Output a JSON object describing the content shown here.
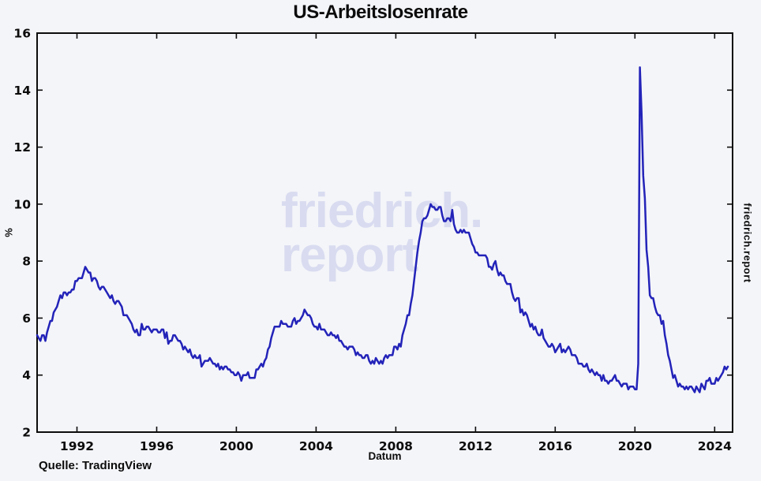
{
  "colors": {
    "background": "#f4f5f9",
    "line": "#2323b9",
    "watermark": "#d9dcf0",
    "axis": "#0c0c0c",
    "text": "#0c0c0c"
  },
  "branding": {
    "watermark_line1": "friedrich.",
    "watermark_line2": "report",
    "side_label": "friedrich.report"
  },
  "source": {
    "label": "Quelle: TradingView"
  },
  "chart_data": {
    "type": "line",
    "title": "US-Arbeitslosenrate",
    "xlabel": "Datum",
    "ylabel": "%",
    "xlim": [
      1990,
      2024.9
    ],
    "ylim": [
      2,
      16
    ],
    "x_ticks": [
      1992,
      1996,
      2000,
      2004,
      2008,
      2012,
      2016,
      2020,
      2024
    ],
    "y_ticks": [
      2,
      4,
      6,
      8,
      10,
      12,
      14,
      16
    ],
    "grid": false,
    "legend": "none",
    "series": [
      {
        "name": "US-Arbeitslosenrate",
        "x_start_year": 1990,
        "x_step": "monthly",
        "values": [
          5.4,
          5.3,
          5.2,
          5.4,
          5.4,
          5.2,
          5.5,
          5.7,
          5.9,
          5.9,
          6.2,
          6.3,
          6.4,
          6.6,
          6.8,
          6.7,
          6.9,
          6.9,
          6.8,
          6.9,
          6.9,
          7.0,
          7.0,
          7.3,
          7.3,
          7.4,
          7.4,
          7.4,
          7.6,
          7.8,
          7.7,
          7.6,
          7.6,
          7.3,
          7.4,
          7.4,
          7.3,
          7.1,
          7.0,
          7.1,
          7.1,
          7.0,
          6.9,
          6.8,
          6.7,
          6.8,
          6.6,
          6.5,
          6.6,
          6.6,
          6.5,
          6.4,
          6.1,
          6.1,
          6.1,
          6.0,
          5.9,
          5.8,
          5.6,
          5.5,
          5.6,
          5.4,
          5.4,
          5.8,
          5.6,
          5.6,
          5.7,
          5.7,
          5.6,
          5.5,
          5.6,
          5.6,
          5.6,
          5.5,
          5.5,
          5.6,
          5.6,
          5.3,
          5.5,
          5.1,
          5.2,
          5.2,
          5.4,
          5.4,
          5.3,
          5.2,
          5.2,
          5.1,
          4.9,
          5.0,
          4.9,
          4.8,
          4.9,
          4.7,
          4.6,
          4.7,
          4.6,
          4.6,
          4.7,
          4.3,
          4.4,
          4.5,
          4.5,
          4.5,
          4.6,
          4.5,
          4.4,
          4.4,
          4.3,
          4.4,
          4.2,
          4.3,
          4.2,
          4.3,
          4.3,
          4.2,
          4.2,
          4.1,
          4.1,
          4.0,
          4.0,
          4.1,
          4.0,
          3.8,
          4.0,
          4.0,
          4.0,
          4.1,
          3.9,
          3.9,
          3.9,
          3.9,
          4.2,
          4.2,
          4.3,
          4.4,
          4.3,
          4.5,
          4.6,
          4.9,
          5.0,
          5.3,
          5.5,
          5.7,
          5.7,
          5.7,
          5.7,
          5.9,
          5.8,
          5.8,
          5.8,
          5.7,
          5.7,
          5.7,
          5.9,
          6.0,
          5.8,
          5.9,
          5.9,
          6.0,
          6.1,
          6.3,
          6.2,
          6.1,
          6.1,
          6.0,
          5.8,
          5.7,
          5.7,
          5.6,
          5.8,
          5.6,
          5.6,
          5.6,
          5.5,
          5.4,
          5.4,
          5.5,
          5.4,
          5.4,
          5.3,
          5.4,
          5.2,
          5.2,
          5.1,
          5.0,
          5.0,
          4.9,
          5.0,
          5.0,
          5.0,
          4.9,
          4.7,
          4.8,
          4.7,
          4.7,
          4.6,
          4.6,
          4.7,
          4.7,
          4.5,
          4.4,
          4.5,
          4.4,
          4.6,
          4.5,
          4.4,
          4.5,
          4.4,
          4.6,
          4.7,
          4.6,
          4.7,
          4.7,
          4.7,
          5.0,
          5.0,
          4.9,
          5.1,
          5.0,
          5.4,
          5.6,
          5.8,
          6.1,
          6.1,
          6.5,
          6.8,
          7.3,
          7.8,
          8.3,
          8.7,
          9.0,
          9.4,
          9.5,
          9.5,
          9.6,
          9.8,
          10.0,
          9.9,
          9.9,
          9.8,
          9.8,
          9.9,
          9.9,
          9.6,
          9.4,
          9.4,
          9.5,
          9.5,
          9.4,
          9.8,
          9.3,
          9.1,
          9.0,
          9.0,
          9.1,
          9.0,
          9.1,
          9.0,
          9.0,
          9.0,
          8.8,
          8.6,
          8.5,
          8.3,
          8.3,
          8.2,
          8.2,
          8.2,
          8.2,
          8.2,
          8.1,
          7.8,
          7.8,
          7.7,
          7.9,
          8.0,
          7.7,
          7.5,
          7.6,
          7.5,
          7.5,
          7.3,
          7.2,
          7.2,
          7.2,
          6.9,
          6.7,
          6.6,
          6.7,
          6.7,
          6.2,
          6.3,
          6.1,
          6.2,
          6.1,
          5.9,
          5.7,
          5.8,
          5.6,
          5.7,
          5.5,
          5.4,
          5.4,
          5.6,
          5.3,
          5.2,
          5.1,
          5.0,
          5.0,
          5.1,
          5.0,
          4.8,
          4.9,
          5.0,
          5.1,
          4.8,
          4.9,
          4.8,
          4.9,
          5.0,
          4.9,
          4.7,
          4.7,
          4.7,
          4.6,
          4.4,
          4.4,
          4.4,
          4.3,
          4.3,
          4.4,
          4.2,
          4.1,
          4.2,
          4.1,
          4.0,
          4.1,
          4.0,
          4.0,
          3.8,
          4.0,
          3.8,
          3.8,
          3.7,
          3.8,
          3.8,
          3.9,
          4.0,
          3.8,
          3.8,
          3.7,
          3.6,
          3.7,
          3.7,
          3.7,
          3.5,
          3.6,
          3.6,
          3.6,
          3.5,
          3.5,
          4.4,
          14.8,
          13.2,
          11.0,
          10.2,
          8.4,
          7.8,
          6.8,
          6.7,
          6.7,
          6.4,
          6.2,
          6.1,
          6.1,
          5.8,
          5.9,
          5.4,
          5.1,
          4.7,
          4.5,
          4.2,
          3.9,
          4.0,
          3.8,
          3.6,
          3.7,
          3.6,
          3.6,
          3.5,
          3.6,
          3.5,
          3.6,
          3.6,
          3.5,
          3.4,
          3.6,
          3.5,
          3.4,
          3.7,
          3.6,
          3.5,
          3.8,
          3.8,
          3.9,
          3.7,
          3.7,
          3.7,
          3.9,
          3.8,
          3.9,
          4.0,
          4.1,
          4.3,
          4.2,
          4.3
        ]
      }
    ]
  }
}
